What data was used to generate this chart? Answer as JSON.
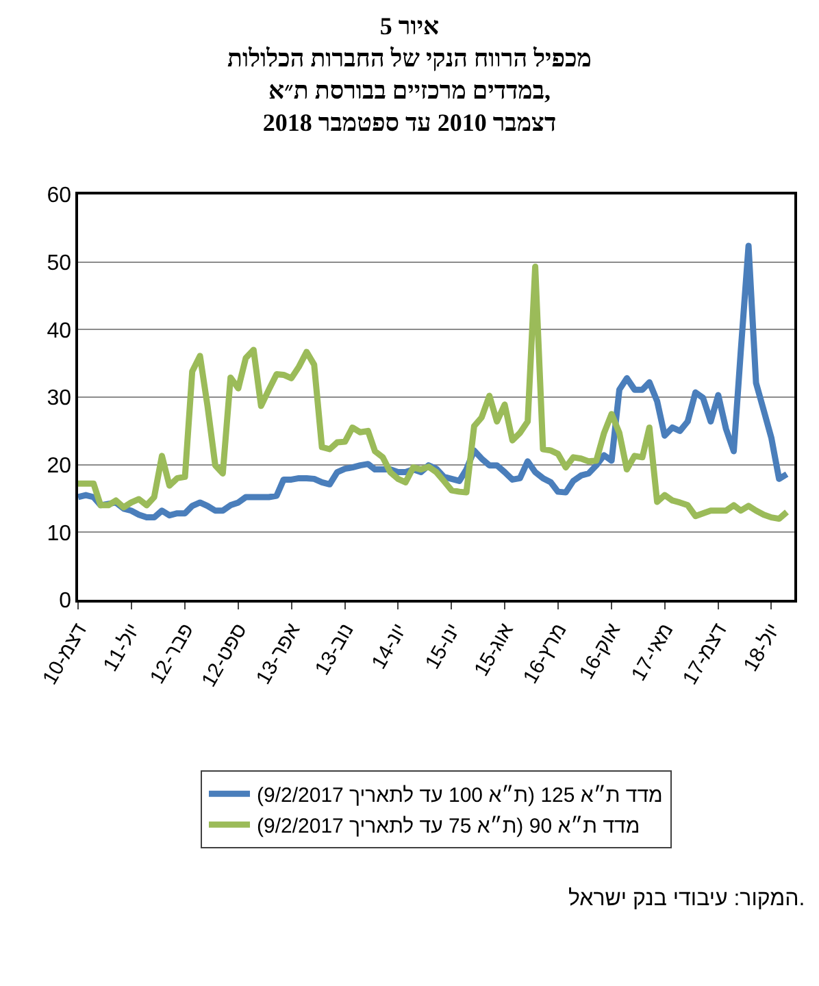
{
  "chart_data": {
    "type": "line",
    "title": "איור 5\nמכפיל הרווח הנקי של החברות הכלולות\nבמדדים מרכזיים בבורסת ת״א,\nדצמבר 2010 עד ספטמבר 2018",
    "x": [
      "2010-12",
      "2011-01",
      "2011-02",
      "2011-03",
      "2011-04",
      "2011-05",
      "2011-06",
      "2011-07",
      "2011-08",
      "2011-09",
      "2011-10",
      "2011-11",
      "2011-12",
      "2012-01",
      "2012-02",
      "2012-03",
      "2012-04",
      "2012-05",
      "2012-06",
      "2012-07",
      "2012-08",
      "2012-09",
      "2012-10",
      "2012-11",
      "2012-12",
      "2013-01",
      "2013-02",
      "2013-03",
      "2013-04",
      "2013-05",
      "2013-06",
      "2013-07",
      "2013-08",
      "2013-09",
      "2013-10",
      "2013-11",
      "2013-12",
      "2014-01",
      "2014-02",
      "2014-03",
      "2014-04",
      "2014-05",
      "2014-06",
      "2014-07",
      "2014-08",
      "2014-09",
      "2014-10",
      "2014-11",
      "2014-12",
      "2015-01",
      "2015-02",
      "2015-03",
      "2015-04",
      "2015-05",
      "2015-06",
      "2015-07",
      "2015-08",
      "2015-09",
      "2015-10",
      "2015-11",
      "2015-12",
      "2016-01",
      "2016-02",
      "2016-03",
      "2016-04",
      "2016-05",
      "2016-06",
      "2016-07",
      "2016-08",
      "2016-09",
      "2016-10",
      "2016-11",
      "2016-12",
      "2017-01",
      "2017-02",
      "2017-03",
      "2017-04",
      "2017-05",
      "2017-06",
      "2017-07",
      "2017-08",
      "2017-09",
      "2017-10",
      "2017-11",
      "2017-12",
      "2018-01",
      "2018-02",
      "2018-03",
      "2018-04",
      "2018-05",
      "2018-06",
      "2018-07",
      "2018-08",
      "2018-09"
    ],
    "series": [
      {
        "name": "מדד ת״א 125 (ת״א 100 עד לתאריך 9/2/2017)",
        "color": "#4a7ebb",
        "values": [
          15.2,
          15.5,
          15.2,
          14,
          14.2,
          14.4,
          13.5,
          13.2,
          12.6,
          12.2,
          12.2,
          13.2,
          12.5,
          12.8,
          12.8,
          13.9,
          14.4,
          13.9,
          13.2,
          13.2,
          14,
          14.4,
          15.2,
          15.2,
          15.2,
          15.2,
          15.4,
          17.8,
          17.8,
          18,
          18,
          17.9,
          17.4,
          17.1,
          18.9,
          19.4,
          19.6,
          19.9,
          20.1,
          19.3,
          19.3,
          19.3,
          18.9,
          18.9,
          19.3,
          18.9,
          19.9,
          19.4,
          18.2,
          17.9,
          17.6,
          19.3,
          22.1,
          20.9,
          19.9,
          19.9,
          18.9,
          17.8,
          18,
          20.5,
          18.9,
          18,
          17.4,
          16,
          15.9,
          17.6,
          18.4,
          18.7,
          19.9,
          21.4,
          20.6,
          31.1,
          32.8,
          31.1,
          31.1,
          32.2,
          29.4,
          24.3,
          25.5,
          25,
          26.4,
          30.7,
          29.9,
          26.4,
          30.3,
          25.3,
          22,
          36.8,
          52.4,
          32.1,
          28,
          24,
          17.9,
          18.6
        ]
      },
      {
        "name": "מדד ת״א 90 (ת״א 75 עד לתאריך 9/2/2017)",
        "color": "#9bbb59",
        "values": [
          17.2,
          17.2,
          17.2,
          14,
          14,
          14.7,
          13.7,
          14.4,
          14.9,
          14,
          15.2,
          21.3,
          16.9,
          18,
          18.2,
          33.8,
          36.1,
          28.7,
          19.9,
          18.7,
          32.9,
          31.3,
          35.8,
          37,
          28.7,
          31.1,
          33.4,
          33.3,
          32.8,
          34.5,
          36.7,
          34.8,
          22.6,
          22.3,
          23.3,
          23.4,
          25.5,
          24.8,
          25,
          22,
          21.1,
          18.9,
          17.9,
          17.4,
          19.6,
          19.3,
          19.7,
          18.9,
          17.6,
          16.2,
          16,
          15.9,
          25.7,
          27,
          30.2,
          26.4,
          28.9,
          23.6,
          24.7,
          26.4,
          49.3,
          22.3,
          22.1,
          21.6,
          19.6,
          21.1,
          20.9,
          20.5,
          20.6,
          24.7,
          27.5,
          24.7,
          19.3,
          21.3,
          21.1,
          25.5,
          14.5,
          15.5,
          14.7,
          14.4,
          14,
          12.4,
          12.8,
          13.2,
          13.2,
          13.2,
          14,
          13.2,
          13.9,
          13.2,
          12.6,
          12.2,
          12,
          13
        ]
      }
    ],
    "xlim": [
      "2010-12",
      "2018-10"
    ],
    "xticks": [
      {
        "value": "2010-12",
        "label": "דצמ-10"
      },
      {
        "value": "2011-07",
        "label": "יול-11"
      },
      {
        "value": "2012-02",
        "label": "פבר-12"
      },
      {
        "value": "2012-09",
        "label": "ספט-12"
      },
      {
        "value": "2013-04",
        "label": "אפר-13"
      },
      {
        "value": "2013-11",
        "label": "נוב-13"
      },
      {
        "value": "2014-06",
        "label": "יונ-14"
      },
      {
        "value": "2015-01",
        "label": "ינו-15"
      },
      {
        "value": "2015-08",
        "label": "אוג-15"
      },
      {
        "value": "2016-03",
        "label": "מרץ-16"
      },
      {
        "value": "2016-10",
        "label": "אוק-16"
      },
      {
        "value": "2017-05",
        "label": "מאי-17"
      },
      {
        "value": "2017-12",
        "label": "דצמ-17"
      },
      {
        "value": "2018-07",
        "label": "יול-18"
      }
    ],
    "ylim": [
      0,
      60
    ],
    "yticks": [
      0,
      10,
      20,
      30,
      40,
      50,
      60
    ],
    "grid": "y",
    "legend": "bottom",
    "marker": "none",
    "line_style": "solid",
    "annotations": [
      "המקור: עיבודי בנק ישראל."
    ]
  }
}
